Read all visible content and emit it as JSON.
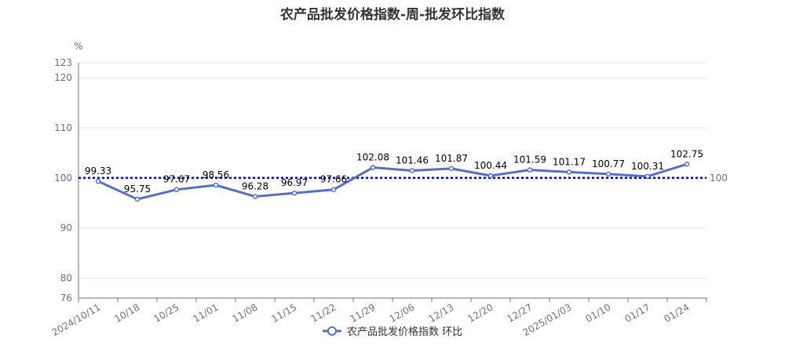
{
  "title": "农产品批发价格指数-周-批发环比指数",
  "chart_data": {
    "type": "line",
    "title": "农产品批发价格指数-周-批发环比指数",
    "ylabel": "%",
    "xlabel": "",
    "ylim": [
      76,
      123
    ],
    "yticks": [
      76,
      80,
      90,
      100,
      110,
      120,
      123
    ],
    "categories": [
      "2024/10/11",
      "10/18",
      "10/25",
      "11/01",
      "11/08",
      "11/15",
      "11/22",
      "11/29",
      "12/06",
      "12/13",
      "12/20",
      "12/27",
      "2025/01/03",
      "01/10",
      "01/17",
      "01/24"
    ],
    "series": [
      {
        "name": "农产品批发价格指数 环比",
        "values": [
          99.33,
          95.75,
          97.67,
          98.56,
          96.28,
          96.97,
          97.66,
          102.08,
          101.46,
          101.87,
          100.44,
          101.59,
          101.17,
          100.77,
          100.31,
          102.75
        ],
        "color": "#5470c6"
      }
    ],
    "reference_line": {
      "value": 100,
      "label": "100",
      "color": "#0000cc"
    },
    "grid": true,
    "legend": "bottom-center"
  }
}
